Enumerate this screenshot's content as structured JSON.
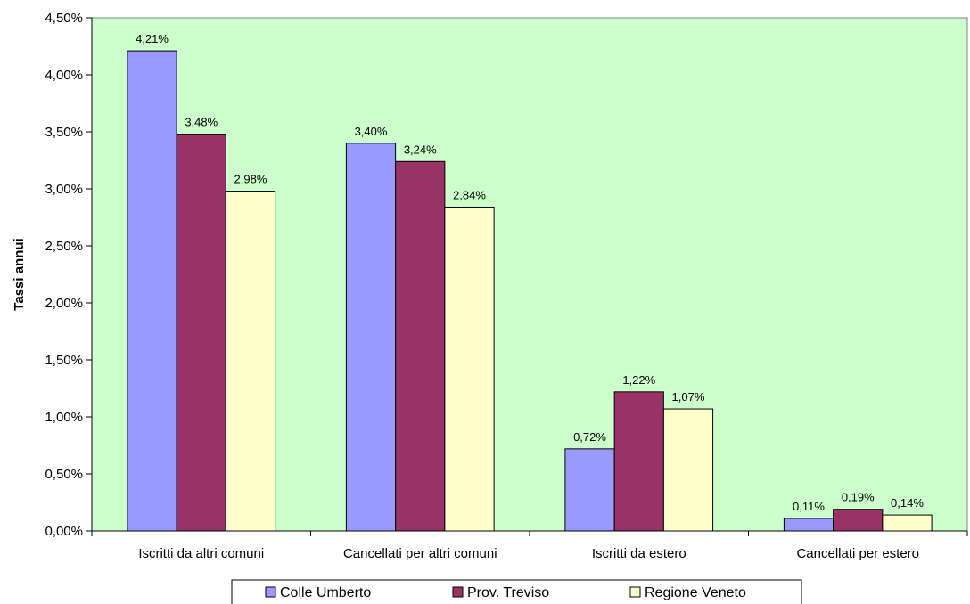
{
  "chart_data": {
    "type": "bar",
    "title": "",
    "xlabel": "",
    "ylabel": "Tassi annui",
    "ylim": [
      0,
      4.5
    ],
    "y_ticks": [
      "0,00%",
      "0,50%",
      "1,00%",
      "1,50%",
      "2,00%",
      "2,50%",
      "3,00%",
      "3,50%",
      "4,00%",
      "4,50%"
    ],
    "categories": [
      "Iscritti da altri comuni",
      "Cancellati per altri comuni",
      "Iscritti da estero",
      "Cancellati per estero"
    ],
    "series": [
      {
        "name": "Colle Umberto",
        "values": [
          4.21,
          3.4,
          0.72,
          0.11
        ],
        "labels": [
          "4,21%",
          "3,40%",
          "0,72%",
          "0,11%"
        ],
        "color": "#9999ff"
      },
      {
        "name": "Prov. Treviso",
        "values": [
          3.48,
          3.24,
          1.22,
          0.19
        ],
        "labels": [
          "3,48%",
          "3,24%",
          "1,22%",
          "0,19%"
        ],
        "color": "#993366"
      },
      {
        "name": "Regione Veneto",
        "values": [
          2.98,
          2.84,
          1.07,
          0.14
        ],
        "labels": [
          "2,98%",
          "2,84%",
          "1,07%",
          "0,14%"
        ],
        "color": "#ffffcc"
      }
    ],
    "plot_background": "#ccffcc",
    "grid": false,
    "legend_position": "bottom"
  }
}
